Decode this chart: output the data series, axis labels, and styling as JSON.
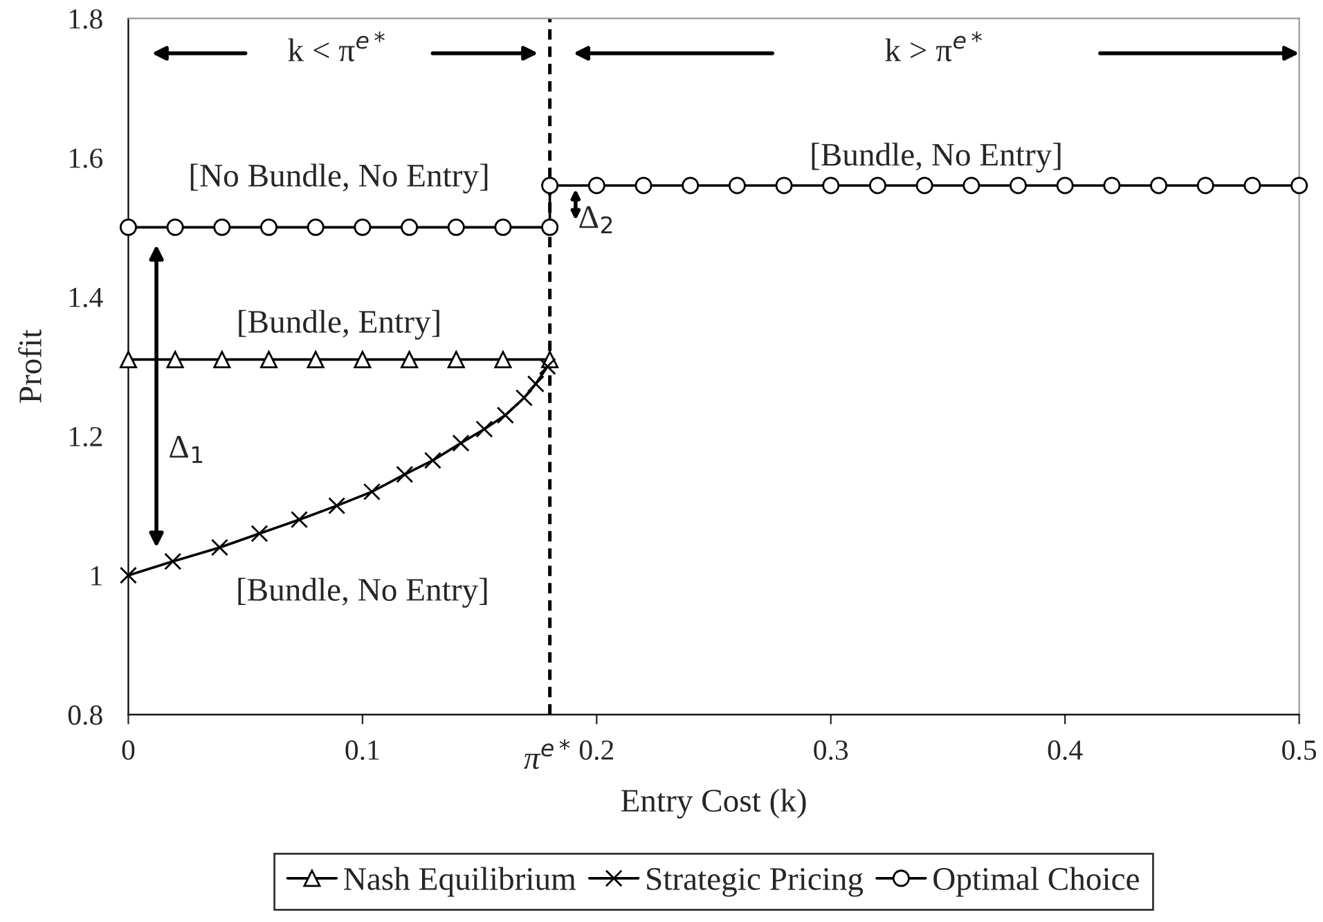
{
  "chart_data": {
    "type": "line",
    "xlabel": "Entry Cost (k)",
    "ylabel": "Profit",
    "xlim": [
      0,
      0.5
    ],
    "ylim": [
      0.8,
      1.8
    ],
    "xticks": [
      0,
      0.1,
      0.2,
      0.3,
      0.4,
      0.5
    ],
    "yticks": [
      0.8,
      1,
      1.2,
      1.4,
      1.6,
      1.8
    ],
    "grid": false,
    "legend": "bottom",
    "series": [
      {
        "name": "Nash Equilibrium",
        "color": "#000000",
        "marker": "triangle",
        "x": [
          0,
          0.02,
          0.04,
          0.06,
          0.08,
          0.1,
          0.12,
          0.14,
          0.16,
          0.18
        ],
        "values": [
          1.31,
          1.31,
          1.31,
          1.31,
          1.31,
          1.31,
          1.31,
          1.31,
          1.31,
          1.31
        ]
      },
      {
        "name": "Strategic Pricing",
        "color": "#000000",
        "marker": "cross",
        "x": [
          0,
          0.019,
          0.039,
          0.056,
          0.073,
          0.089,
          0.104,
          0.118,
          0.13,
          0.142,
          0.152,
          0.161,
          0.169,
          0.174,
          0.179
        ],
        "values": [
          1.0,
          1.02,
          1.04,
          1.06,
          1.08,
          1.1,
          1.12,
          1.145,
          1.165,
          1.19,
          1.21,
          1.23,
          1.255,
          1.275,
          1.3
        ]
      },
      {
        "name": "Optimal Choice",
        "color": "#000000",
        "marker": "circle",
        "x": [
          0,
          0.02,
          0.04,
          0.06,
          0.08,
          0.1,
          0.12,
          0.14,
          0.16,
          0.18,
          0.18,
          0.2,
          0.22,
          0.24,
          0.26,
          0.28,
          0.3,
          0.32,
          0.34,
          0.36,
          0.38,
          0.4,
          0.42,
          0.44,
          0.46,
          0.48,
          0.5
        ],
        "values": [
          1.5,
          1.5,
          1.5,
          1.5,
          1.5,
          1.5,
          1.5,
          1.5,
          1.5,
          1.5,
          1.56,
          1.56,
          1.56,
          1.56,
          1.56,
          1.56,
          1.56,
          1.56,
          1.56,
          1.56,
          1.56,
          1.56,
          1.56,
          1.56,
          1.56,
          1.56,
          1.56
        ]
      }
    ],
    "ref_lines": [
      {
        "axis": "x",
        "value": 0.18,
        "label": "π$^{e*}$",
        "color": "#000000",
        "line_style": "dashed"
      }
    ],
    "annotations": [
      "k < π$^{e*}$",
      "k > π$^{e*}$",
      "[No Bundle, No Entry]",
      "[Bundle, No Entry]",
      "[Bundle, Entry]",
      "[Bundle, No Entry]",
      "Δ$_{1}$",
      "Δ$_{2}$"
    ]
  }
}
